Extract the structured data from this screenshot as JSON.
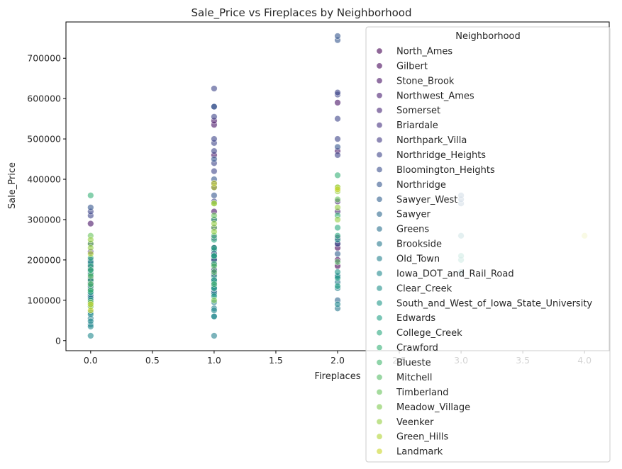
{
  "chart_data": {
    "type": "scatter",
    "title": "Sale_Price vs Fireplaces by Neighborhood",
    "xlabel": "Fireplaces",
    "ylabel": "Sale_Price",
    "xlim": [
      -0.2,
      4.2
    ],
    "ylim": [
      -25000,
      790000
    ],
    "x_ticks": [
      0.0,
      0.5,
      1.0,
      1.5,
      2.0,
      2.5,
      3.0,
      3.5,
      4.0
    ],
    "x_tick_labels": [
      "0.0",
      "0.5",
      "1.0",
      "1.5",
      "2.0",
      "2.5",
      "3.0",
      "3.5",
      "4.0"
    ],
    "y_ticks": [
      0,
      100000,
      200000,
      300000,
      400000,
      500000,
      600000,
      700000
    ],
    "y_tick_labels": [
      "0",
      "100000",
      "200000",
      "300000",
      "400000",
      "500000",
      "600000",
      "700000"
    ],
    "grid": false,
    "legend": {
      "title": "Neighborhood",
      "placement": "top-right"
    },
    "colormap": "viridis",
    "point_alpha": 0.6,
    "series": [
      {
        "name": "North_Ames",
        "color": "#440154",
        "points": [
          [
            0,
            135000
          ],
          [
            0,
            125000
          ],
          [
            0,
            145000
          ],
          [
            0,
            155000
          ],
          [
            0,
            115000
          ],
          [
            1,
            150000
          ],
          [
            1,
            165000
          ],
          [
            1,
            175000
          ],
          [
            1,
            140000
          ],
          [
            2,
            185000
          ],
          [
            2,
            200000
          ]
        ]
      },
      {
        "name": "Gilbert",
        "color": "#46075a",
        "points": [
          [
            0,
            170000
          ],
          [
            0,
            185000
          ],
          [
            1,
            190000
          ],
          [
            1,
            205000
          ],
          [
            1,
            215000
          ],
          [
            2,
            230000
          ]
        ]
      },
      {
        "name": "Stone_Brook",
        "color": "#471365",
        "points": [
          [
            0,
            290000
          ],
          [
            1,
            320000
          ],
          [
            1,
            380000
          ],
          [
            1,
            460000
          ],
          [
            1,
            535000
          ],
          [
            1,
            545000
          ],
          [
            2,
            590000
          ],
          [
            2,
            470000
          ]
        ]
      },
      {
        "name": "Northwest_Ames",
        "color": "#481d6f",
        "points": [
          [
            0,
            180000
          ],
          [
            0,
            195000
          ],
          [
            1,
            200000
          ],
          [
            1,
            215000
          ],
          [
            1,
            230000
          ],
          [
            2,
            240000
          ],
          [
            2,
            255000
          ]
        ]
      },
      {
        "name": "Somerset",
        "color": "#472777",
        "points": [
          [
            0,
            220000
          ],
          [
            0,
            240000
          ],
          [
            1,
            255000
          ],
          [
            1,
            280000
          ],
          [
            1,
            300000
          ],
          [
            2,
            320000
          ],
          [
            2,
            345000
          ]
        ]
      },
      {
        "name": "Briardale",
        "color": "#45317e",
        "points": [
          [
            0,
            100000
          ],
          [
            0,
            110000
          ],
          [
            1,
            120000
          ],
          [
            1,
            130000
          ]
        ]
      },
      {
        "name": "Northpark_Villa",
        "color": "#423b84",
        "points": [
          [
            0,
            120000
          ],
          [
            0,
            130000
          ],
          [
            1,
            140000
          ]
        ]
      },
      {
        "name": "Northridge_Heights",
        "color": "#3e4489",
        "points": [
          [
            0,
            310000
          ],
          [
            0,
            320000
          ],
          [
            1,
            345000
          ],
          [
            1,
            390000
          ],
          [
            1,
            420000
          ],
          [
            1,
            440000
          ],
          [
            1,
            470000
          ],
          [
            1,
            490000
          ],
          [
            1,
            500000
          ],
          [
            1,
            555000
          ],
          [
            1,
            580000
          ],
          [
            1,
            625000
          ],
          [
            2,
            550000
          ],
          [
            2,
            610000
          ],
          [
            2,
            615000
          ],
          [
            2,
            500000
          ],
          [
            2,
            460000
          ]
        ]
      },
      {
        "name": "Bloomington_Heights",
        "color": "#3a4e8c",
        "points": [
          [
            0,
            200000
          ],
          [
            1,
            215000
          ],
          [
            1,
            230000
          ],
          [
            2,
            240000
          ]
        ]
      },
      {
        "name": "Northridge",
        "color": "#35568d",
        "points": [
          [
            0,
            330000
          ],
          [
            1,
            360000
          ],
          [
            1,
            400000
          ],
          [
            1,
            450000
          ],
          [
            1,
            580000
          ],
          [
            2,
            480000
          ],
          [
            2,
            745000
          ],
          [
            2,
            755000
          ]
        ]
      },
      {
        "name": "Sawyer_West",
        "color": "#315f8e",
        "points": [
          [
            0,
            150000
          ],
          [
            0,
            165000
          ],
          [
            1,
            175000
          ],
          [
            1,
            190000
          ],
          [
            1,
            210000
          ],
          [
            2,
            215000
          ],
          [
            3,
            340000
          ],
          [
            3,
            350000
          ],
          [
            3,
            360000
          ]
        ]
      },
      {
        "name": "Sawyer",
        "color": "#2d678e",
        "points": [
          [
            0,
            115000
          ],
          [
            0,
            125000
          ],
          [
            0,
            140000
          ],
          [
            1,
            135000
          ],
          [
            1,
            150000
          ],
          [
            2,
            160000
          ],
          [
            2,
            100000
          ]
        ]
      },
      {
        "name": "Greens",
        "color": "#29708e",
        "points": [
          [
            0,
            190000
          ],
          [
            1,
            200000
          ]
        ]
      },
      {
        "name": "Brookside",
        "color": "#26788e",
        "points": [
          [
            0,
            95000
          ],
          [
            0,
            110000
          ],
          [
            1,
            120000
          ],
          [
            1,
            135000
          ],
          [
            2,
            145000
          ],
          [
            2,
            80000
          ]
        ]
      },
      {
        "name": "Old_Town",
        "color": "#23808e",
        "points": [
          [
            0,
            40000
          ],
          [
            0,
            55000
          ],
          [
            0,
            70000
          ],
          [
            0,
            90000
          ],
          [
            0,
            105000
          ],
          [
            1,
            60000
          ],
          [
            1,
            80000
          ],
          [
            1,
            95000
          ],
          [
            1,
            115000
          ],
          [
            1,
            130000
          ],
          [
            1,
            12000
          ],
          [
            2,
            130000
          ],
          [
            2,
            160000
          ],
          [
            3,
            170000
          ],
          [
            3,
            260000
          ]
        ]
      },
      {
        "name": "Iowa_DOT_and_Rail_Road",
        "color": "#20888d",
        "points": [
          [
            0,
            12000
          ],
          [
            0,
            35000
          ],
          [
            0,
            48000
          ],
          [
            0,
            65000
          ],
          [
            1,
            60000
          ],
          [
            1,
            75000
          ],
          [
            2,
            90000
          ]
        ]
      },
      {
        "name": "Clear_Creek",
        "color": "#1f908b",
        "points": [
          [
            0,
            175000
          ],
          [
            0,
            195000
          ],
          [
            1,
            210000
          ],
          [
            1,
            225000
          ],
          [
            2,
            250000
          ]
        ]
      },
      {
        "name": "South_and_West_of_Iowa_State_University",
        "color": "#1f9889",
        "points": [
          [
            0,
            120000
          ],
          [
            0,
            135000
          ],
          [
            1,
            145000
          ],
          [
            1,
            160000
          ],
          [
            2,
            170000
          ]
        ]
      },
      {
        "name": "Edwards",
        "color": "#22a085",
        "points": [
          [
            0,
            85000
          ],
          [
            0,
            100000
          ],
          [
            0,
            120000
          ],
          [
            1,
            110000
          ],
          [
            1,
            130000
          ],
          [
            1,
            150000
          ],
          [
            2,
            135000
          ],
          [
            2,
            155000
          ],
          [
            3,
            200000
          ],
          [
            3,
            210000
          ]
        ]
      },
      {
        "name": "College_Creek",
        "color": "#29a87f",
        "points": [
          [
            0,
            165000
          ],
          [
            0,
            185000
          ],
          [
            0,
            205000
          ],
          [
            1,
            210000
          ],
          [
            1,
            230000
          ],
          [
            1,
            250000
          ],
          [
            2,
            260000
          ],
          [
            2,
            280000
          ]
        ]
      },
      {
        "name": "Crawford",
        "color": "#36b077",
        "points": [
          [
            0,
            150000
          ],
          [
            0,
            175000
          ],
          [
            0,
            360000
          ],
          [
            1,
            190000
          ],
          [
            1,
            260000
          ],
          [
            1,
            300000
          ],
          [
            2,
            310000
          ],
          [
            2,
            410000
          ]
        ]
      },
      {
        "name": "Blueste",
        "color": "#45b76f",
        "points": [
          [
            0,
            125000
          ],
          [
            1,
            140000
          ]
        ]
      },
      {
        "name": "Mitchell",
        "color": "#56bd67",
        "points": [
          [
            0,
            140000
          ],
          [
            0,
            160000
          ],
          [
            1,
            170000
          ],
          [
            1,
            185000
          ],
          [
            2,
            195000
          ]
        ]
      },
      {
        "name": "Timberland",
        "color": "#69c35c",
        "points": [
          [
            0,
            240000
          ],
          [
            0,
            260000
          ],
          [
            1,
            280000
          ],
          [
            1,
            310000
          ],
          [
            1,
            340000
          ],
          [
            2,
            350000
          ],
          [
            2,
            380000
          ]
        ]
      },
      {
        "name": "Meadow_Village",
        "color": "#7fc950",
        "points": [
          [
            0,
            85000
          ],
          [
            0,
            95000
          ],
          [
            1,
            100000
          ]
        ]
      },
      {
        "name": "Veenker",
        "color": "#96ce43",
        "points": [
          [
            0,
            230000
          ],
          [
            0,
            250000
          ],
          [
            1,
            270000
          ],
          [
            1,
            290000
          ],
          [
            2,
            300000
          ],
          [
            2,
            330000
          ],
          [
            2,
            370000
          ]
        ]
      },
      {
        "name": "Green_Hills",
        "color": "#b0d334",
        "points": [
          [
            0,
            215000
          ],
          [
            1,
            340000
          ],
          [
            1,
            380000
          ],
          [
            2,
            380000
          ]
        ]
      },
      {
        "name": "Landmark",
        "color": "#c9d628",
        "points": [
          [
            0,
            75000
          ],
          [
            0,
            90000
          ],
          [
            1,
            390000
          ],
          [
            2,
            375000
          ],
          [
            4,
            260000
          ]
        ]
      }
    ]
  }
}
